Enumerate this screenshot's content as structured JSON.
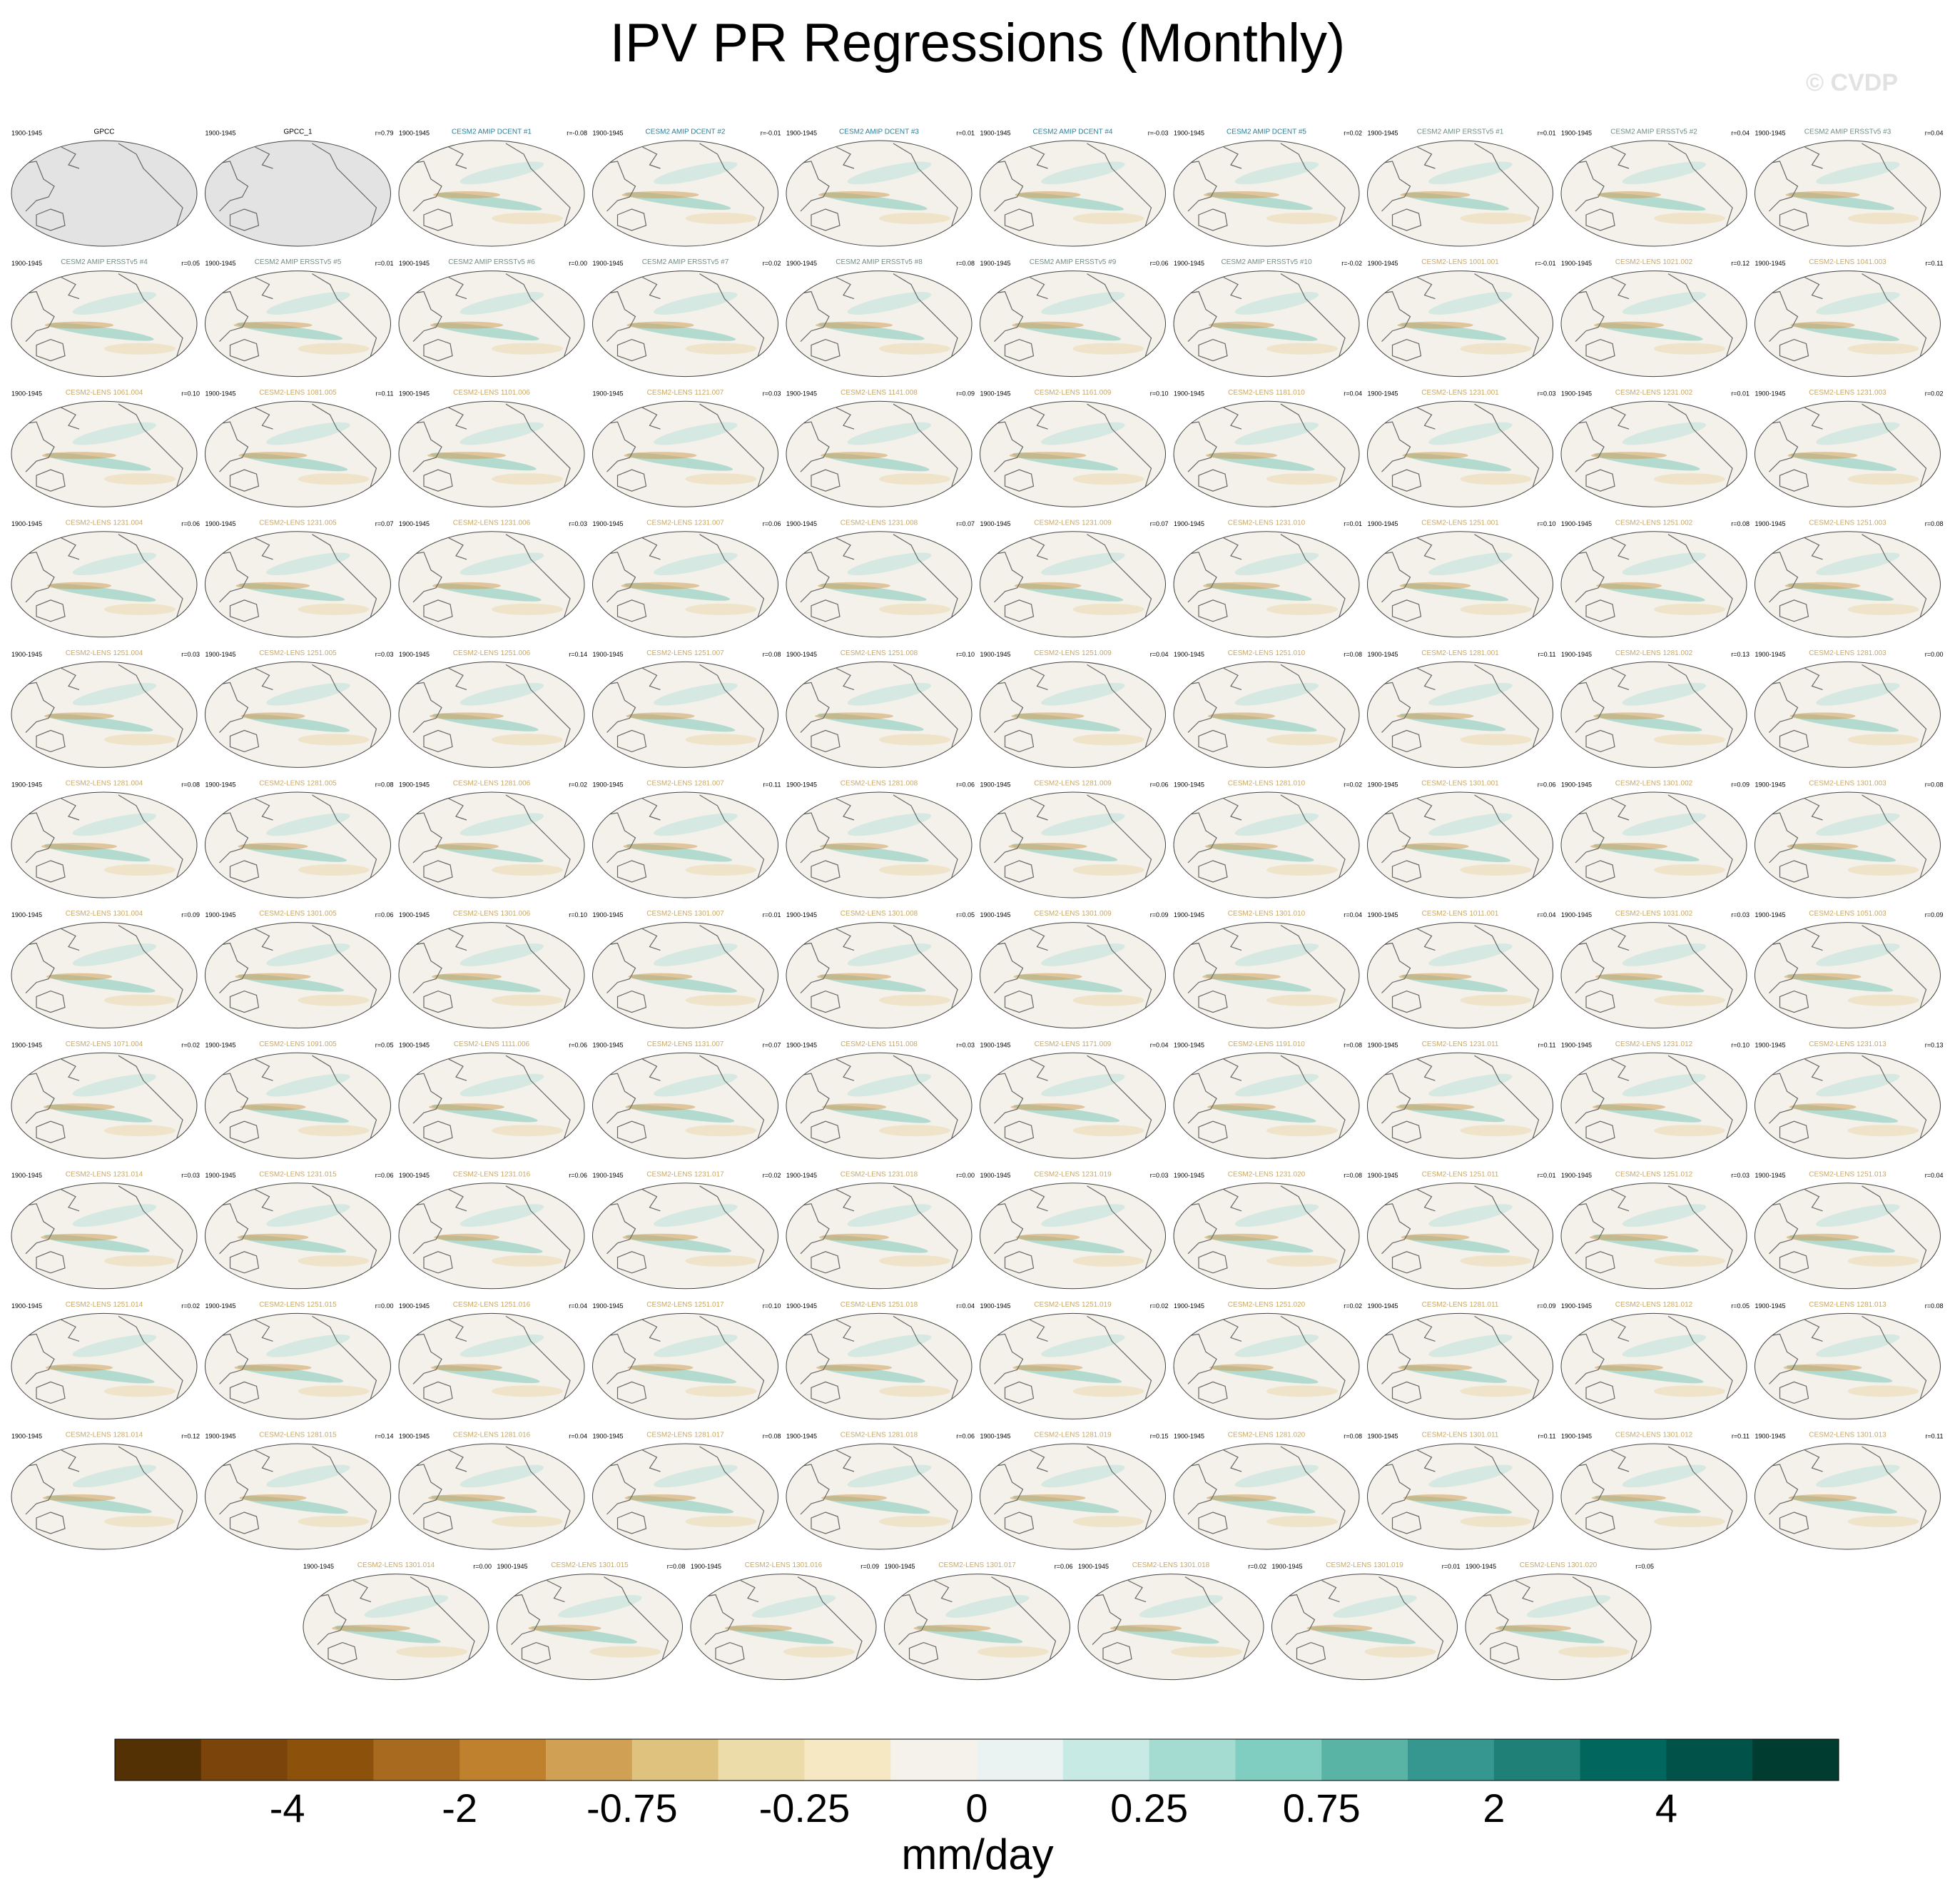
{
  "title": "IPV PR Regressions (Monthly)",
  "watermark": "© CVDP",
  "map_fill": "#f4f1ea",
  "panels": [
    {
      "title": "GPCC",
      "period": "1900-1945",
      "title_color": "#000000",
      "map_fill": "#e3e3e3"
    },
    {
      "title": "GPCC_1",
      "period": "1900-1945",
      "r": "r=0.79",
      "title_color": "#000000",
      "map_fill": "#e3e3e3"
    },
    {
      "title": "CESM2 AMIP DCENT #1",
      "period": "1900-1945",
      "r": "r=-0.08",
      "title_color": "#2a7f9a"
    },
    {
      "title": "CESM2 AMIP DCENT #2",
      "period": "1900-1945",
      "r": "r=-0.01",
      "title_color": "#2a7f9a"
    },
    {
      "title": "CESM2 AMIP DCENT #3",
      "period": "1900-1945",
      "r": "r=0.01",
      "title_color": "#2a7f9a"
    },
    {
      "title": "CESM2 AMIP DCENT #4",
      "period": "1900-1945",
      "r": "r=-0.03",
      "title_color": "#2a7f9a"
    },
    {
      "title": "CESM2 AMIP DCENT #5",
      "period": "1900-1945",
      "r": "r=0.02",
      "title_color": "#2a7f9a"
    },
    {
      "title": "CESM2 AMIP ERSSTv5 #1",
      "period": "1900-1945",
      "r": "r=0.01",
      "title_color": "#6f8f80"
    },
    {
      "title": "CESM2 AMIP ERSSTv5 #2",
      "period": "1900-1945",
      "r": "r=0.04",
      "title_color": "#6f8f80"
    },
    {
      "title": "CESM2 AMIP ERSSTv5 #3",
      "period": "1900-1945",
      "r": "r=0.04",
      "title_color": "#6f8f80"
    },
    {
      "title": "CESM2 AMIP ERSSTv5 #4",
      "period": "1900-1945",
      "r": "r=0.05",
      "title_color": "#6f8f80"
    },
    {
      "title": "CESM2 AMIP ERSSTv5 #5",
      "period": "1900-1945",
      "r": "r=0.01",
      "title_color": "#6f8f80"
    },
    {
      "title": "CESM2 AMIP ERSSTv5 #6",
      "period": "1900-1945",
      "r": "r=0.00",
      "title_color": "#6f8f80"
    },
    {
      "title": "CESM2 AMIP ERSSTv5 #7",
      "period": "1900-1945",
      "r": "r=0.02",
      "title_color": "#6f8f80"
    },
    {
      "title": "CESM2 AMIP ERSSTv5 #8",
      "period": "1900-1945",
      "r": "r=0.08",
      "title_color": "#6f8f80"
    },
    {
      "title": "CESM2 AMIP ERSSTv5 #9",
      "period": "1900-1945",
      "r": "r=0.06",
      "title_color": "#6f8f80"
    },
    {
      "title": "CESM2 AMIP ERSSTv5 #10",
      "period": "1900-1945",
      "r": "r=-0.02",
      "title_color": "#6f8f80"
    },
    {
      "title": "CESM2-LENS 1001.001",
      "period": "1900-1945",
      "r": "r=-0.01",
      "title_color": "#c9a864"
    },
    {
      "title": "CESM2-LENS 1021.002",
      "period": "1900-1945",
      "r": "r=0.12",
      "title_color": "#c9a864"
    },
    {
      "title": "CESM2-LENS 1041.003",
      "period": "1900-1945",
      "r": "r=0.11",
      "title_color": "#c9a864"
    },
    {
      "title": "CESM2-LENS 1061.004",
      "period": "1900-1945",
      "r": "r=0.10",
      "title_color": "#c9a864"
    },
    {
      "title": "CESM2-LENS 1081.005",
      "period": "1900-1945",
      "r": "r=0.11",
      "title_color": "#c9a864"
    },
    {
      "title": "CESM2-LENS 1101.006",
      "period": "1900-1945",
      "title_color": "#c9a864"
    },
    {
      "title": "CESM2-LENS 1121.007",
      "period": "1900-1945",
      "r": "r=0.03",
      "title_color": "#c9a864"
    },
    {
      "title": "CESM2-LENS 1141.008",
      "period": "1900-1945",
      "r": "r=0.09",
      "title_color": "#c9a864"
    },
    {
      "title": "CESM2-LENS 1161.009",
      "period": "1900-1945",
      "r": "r=0.10",
      "title_color": "#c9a864"
    },
    {
      "title": "CESM2-LENS 1181.010",
      "period": "1900-1945",
      "r": "r=0.04",
      "title_color": "#c9a864"
    },
    {
      "title": "CESM2-LENS 1231.001",
      "period": "1900-1945",
      "r": "r=0.03",
      "title_color": "#c9a864"
    },
    {
      "title": "CESM2-LENS 1231.002",
      "period": "1900-1945",
      "r": "r=0.01",
      "title_color": "#c9a864"
    },
    {
      "title": "CESM2-LENS 1231.003",
      "period": "1900-1945",
      "r": "r=0.02",
      "title_color": "#c9a864"
    },
    {
      "title": "CESM2-LENS 1231.004",
      "period": "1900-1945",
      "r": "r=0.06",
      "title_color": "#c9a864"
    },
    {
      "title": "CESM2-LENS 1231.005",
      "period": "1900-1945",
      "r": "r=0.07",
      "title_color": "#c9a864"
    },
    {
      "title": "CESM2-LENS 1231.006",
      "period": "1900-1945",
      "r": "r=0.03",
      "title_color": "#c9a864"
    },
    {
      "title": "CESM2-LENS 1231.007",
      "period": "1900-1945",
      "r": "r=0.06",
      "title_color": "#c9a864"
    },
    {
      "title": "CESM2-LENS 1231.008",
      "period": "1900-1945",
      "r": "r=0.07",
      "title_color": "#c9a864"
    },
    {
      "title": "CESM2-LENS 1231.009",
      "period": "1900-1945",
      "r": "r=0.07",
      "title_color": "#c9a864"
    },
    {
      "title": "CESM2-LENS 1231.010",
      "period": "1900-1945",
      "r": "r=0.01",
      "title_color": "#c9a864"
    },
    {
      "title": "CESM2-LENS 1251.001",
      "period": "1900-1945",
      "r": "r=0.10",
      "title_color": "#c9a864"
    },
    {
      "title": "CESM2-LENS 1251.002",
      "period": "1900-1945",
      "r": "r=0.08",
      "title_color": "#c9a864"
    },
    {
      "title": "CESM2-LENS 1251.003",
      "period": "1900-1945",
      "r": "r=0.08",
      "title_color": "#c9a864"
    },
    {
      "title": "CESM2-LENS 1251.004",
      "period": "1900-1945",
      "r": "r=0.03",
      "title_color": "#c9a864"
    },
    {
      "title": "CESM2-LENS 1251.005",
      "period": "1900-1945",
      "r": "r=0.03",
      "title_color": "#c9a864"
    },
    {
      "title": "CESM2-LENS 1251.006",
      "period": "1900-1945",
      "r": "r=0.14",
      "title_color": "#c9a864"
    },
    {
      "title": "CESM2-LENS 1251.007",
      "period": "1900-1945",
      "r": "r=0.08",
      "title_color": "#c9a864"
    },
    {
      "title": "CESM2-LENS 1251.008",
      "period": "1900-1945",
      "r": "r=0.10",
      "title_color": "#c9a864"
    },
    {
      "title": "CESM2-LENS 1251.009",
      "period": "1900-1945",
      "r": "r=0.04",
      "title_color": "#c9a864"
    },
    {
      "title": "CESM2-LENS 1251.010",
      "period": "1900-1945",
      "r": "r=0.08",
      "title_color": "#c9a864"
    },
    {
      "title": "CESM2-LENS 1281.001",
      "period": "1900-1945",
      "r": "r=0.11",
      "title_color": "#c9a864"
    },
    {
      "title": "CESM2-LENS 1281.002",
      "period": "1900-1945",
      "r": "r=0.13",
      "title_color": "#c9a864"
    },
    {
      "title": "CESM2-LENS 1281.003",
      "period": "1900-1945",
      "r": "r=0.00",
      "title_color": "#c9a864"
    },
    {
      "title": "CESM2-LENS 1281.004",
      "period": "1900-1945",
      "r": "r=0.08",
      "title_color": "#c9a864"
    },
    {
      "title": "CESM2-LENS 1281.005",
      "period": "1900-1945",
      "r": "r=0.08",
      "title_color": "#c9a864"
    },
    {
      "title": "CESM2-LENS 1281.006",
      "period": "1900-1945",
      "r": "r=0.02",
      "title_color": "#c9a864"
    },
    {
      "title": "CESM2-LENS 1281.007",
      "period": "1900-1945",
      "r": "r=0.11",
      "title_color": "#c9a864"
    },
    {
      "title": "CESM2-LENS 1281.008",
      "period": "1900-1945",
      "r": "r=0.06",
      "title_color": "#c9a864"
    },
    {
      "title": "CESM2-LENS 1281.009",
      "period": "1900-1945",
      "r": "r=0.06",
      "title_color": "#c9a864"
    },
    {
      "title": "CESM2-LENS 1281.010",
      "period": "1900-1945",
      "r": "r=0.02",
      "title_color": "#c9a864"
    },
    {
      "title": "CESM2-LENS 1301.001",
      "period": "1900-1945",
      "r": "r=0.06",
      "title_color": "#c9a864"
    },
    {
      "title": "CESM2-LENS 1301.002",
      "period": "1900-1945",
      "r": "r=0.09",
      "title_color": "#c9a864"
    },
    {
      "title": "CESM2-LENS 1301.003",
      "period": "1900-1945",
      "r": "r=0.08",
      "title_color": "#c9a864"
    },
    {
      "title": "CESM2-LENS 1301.004",
      "period": "1900-1945",
      "r": "r=0.09",
      "title_color": "#c9a864"
    },
    {
      "title": "CESM2-LENS 1301.005",
      "period": "1900-1945",
      "r": "r=0.06",
      "title_color": "#c9a864"
    },
    {
      "title": "CESM2-LENS 1301.006",
      "period": "1900-1945",
      "r": "r=0.10",
      "title_color": "#c9a864"
    },
    {
      "title": "CESM2-LENS 1301.007",
      "period": "1900-1945",
      "r": "r=0.01",
      "title_color": "#c9a864"
    },
    {
      "title": "CESM2-LENS 1301.008",
      "period": "1900-1945",
      "r": "r=0.05",
      "title_color": "#c9a864"
    },
    {
      "title": "CESM2-LENS 1301.009",
      "period": "1900-1945",
      "r": "r=0.09",
      "title_color": "#c9a864"
    },
    {
      "title": "CESM2-LENS 1301.010",
      "period": "1900-1945",
      "r": "r=0.04",
      "title_color": "#c9a864"
    },
    {
      "title": "CESM2-LENS 1011.001",
      "period": "1900-1945",
      "r": "r=0.04",
      "title_color": "#c9a864"
    },
    {
      "title": "CESM2-LENS 1031.002",
      "period": "1900-1945",
      "r": "r=0.03",
      "title_color": "#c9a864"
    },
    {
      "title": "CESM2-LENS 1051.003",
      "period": "1900-1945",
      "r": "r=0.09",
      "title_color": "#c9a864"
    },
    {
      "title": "CESM2-LENS 1071.004",
      "period": "1900-1945",
      "r": "r=0.02",
      "title_color": "#c9a864"
    },
    {
      "title": "CESM2-LENS 1091.005",
      "period": "1900-1945",
      "r": "r=0.05",
      "title_color": "#c9a864"
    },
    {
      "title": "CESM2-LENS 1111.006",
      "period": "1900-1945",
      "r": "r=0.06",
      "title_color": "#c9a864"
    },
    {
      "title": "CESM2-LENS 1131.007",
      "period": "1900-1945",
      "r": "r=0.07",
      "title_color": "#c9a864"
    },
    {
      "title": "CESM2-LENS 1151.008",
      "period": "1900-1945",
      "r": "r=0.03",
      "title_color": "#c9a864"
    },
    {
      "title": "CESM2-LENS 1171.009",
      "period": "1900-1945",
      "r": "r=0.04",
      "title_color": "#c9a864"
    },
    {
      "title": "CESM2-LENS 1191.010",
      "period": "1900-1945",
      "r": "r=0.08",
      "title_color": "#c9a864"
    },
    {
      "title": "CESM2-LENS 1231.011",
      "period": "1900-1945",
      "r": "r=0.11",
      "title_color": "#c9a864"
    },
    {
      "title": "CESM2-LENS 1231.012",
      "period": "1900-1945",
      "r": "r=0.10",
      "title_color": "#c9a864"
    },
    {
      "title": "CESM2-LENS 1231.013",
      "period": "1900-1945",
      "r": "r=0.13",
      "title_color": "#c9a864"
    },
    {
      "title": "CESM2-LENS 1231.014",
      "period": "1900-1945",
      "r": "r=0.03",
      "title_color": "#c9a864"
    },
    {
      "title": "CESM2-LENS 1231.015",
      "period": "1900-1945",
      "r": "r=0.06",
      "title_color": "#c9a864"
    },
    {
      "title": "CESM2-LENS 1231.016",
      "period": "1900-1945",
      "r": "r=0.06",
      "title_color": "#c9a864"
    },
    {
      "title": "CESM2-LENS 1231.017",
      "period": "1900-1945",
      "r": "r=0.02",
      "title_color": "#c9a864"
    },
    {
      "title": "CESM2-LENS 1231.018",
      "period": "1900-1945",
      "r": "r=0.00",
      "title_color": "#c9a864"
    },
    {
      "title": "CESM2-LENS 1231.019",
      "period": "1900-1945",
      "r": "r=0.03",
      "title_color": "#c9a864"
    },
    {
      "title": "CESM2-LENS 1231.020",
      "period": "1900-1945",
      "r": "r=0.08",
      "title_color": "#c9a864"
    },
    {
      "title": "CESM2-LENS 1251.011",
      "period": "1900-1945",
      "r": "r=0.01",
      "title_color": "#c9a864"
    },
    {
      "title": "CESM2-LENS 1251.012",
      "period": "1900-1945",
      "r": "r=0.03",
      "title_color": "#c9a864"
    },
    {
      "title": "CESM2-LENS 1251.013",
      "period": "1900-1945",
      "r": "r=0.04",
      "title_color": "#c9a864"
    },
    {
      "title": "CESM2-LENS 1251.014",
      "period": "1900-1945",
      "r": "r=0.02",
      "title_color": "#c9a864"
    },
    {
      "title": "CESM2-LENS 1251.015",
      "period": "1900-1945",
      "r": "r=0.00",
      "title_color": "#c9a864"
    },
    {
      "title": "CESM2-LENS 1251.016",
      "period": "1900-1945",
      "r": "r=0.04",
      "title_color": "#c9a864"
    },
    {
      "title": "CESM2-LENS 1251.017",
      "period": "1900-1945",
      "r": "r=0.10",
      "title_color": "#c9a864"
    },
    {
      "title": "CESM2-LENS 1251.018",
      "period": "1900-1945",
      "r": "r=0.04",
      "title_color": "#c9a864"
    },
    {
      "title": "CESM2-LENS 1251.019",
      "period": "1900-1945",
      "r": "r=0.02",
      "title_color": "#c9a864"
    },
    {
      "title": "CESM2-LENS 1251.020",
      "period": "1900-1945",
      "r": "r=0.02",
      "title_color": "#c9a864"
    },
    {
      "title": "CESM2-LENS 1281.011",
      "period": "1900-1945",
      "r": "r=0.09",
      "title_color": "#c9a864"
    },
    {
      "title": "CESM2-LENS 1281.012",
      "period": "1900-1945",
      "r": "r=0.05",
      "title_color": "#c9a864"
    },
    {
      "title": "CESM2-LENS 1281.013",
      "period": "1900-1945",
      "r": "r=0.08",
      "title_color": "#c9a864"
    },
    {
      "title": "CESM2-LENS 1281.014",
      "period": "1900-1945",
      "r": "r=0.12",
      "title_color": "#c9a864"
    },
    {
      "title": "CESM2-LENS 1281.015",
      "period": "1900-1945",
      "r": "r=0.14",
      "title_color": "#c9a864"
    },
    {
      "title": "CESM2-LENS 1281.016",
      "period": "1900-1945",
      "r": "r=0.04",
      "title_color": "#c9a864"
    },
    {
      "title": "CESM2-LENS 1281.017",
      "period": "1900-1945",
      "r": "r=0.08",
      "title_color": "#c9a864"
    },
    {
      "title": "CESM2-LENS 1281.018",
      "period": "1900-1945",
      "r": "r=0.06",
      "title_color": "#c9a864"
    },
    {
      "title": "CESM2-LENS 1281.019",
      "period": "1900-1945",
      "r": "r=0.15",
      "title_color": "#c9a864"
    },
    {
      "title": "CESM2-LENS 1281.020",
      "period": "1900-1945",
      "r": "r=0.08",
      "title_color": "#c9a864"
    },
    {
      "title": "CESM2-LENS 1301.011",
      "period": "1900-1945",
      "r": "r=0.11",
      "title_color": "#c9a864"
    },
    {
      "title": "CESM2-LENS 1301.012",
      "period": "1900-1945",
      "r": "r=0.11",
      "title_color": "#c9a864"
    },
    {
      "title": "CESM2-LENS 1301.013",
      "period": "1900-1945",
      "r": "r=0.11",
      "title_color": "#c9a864"
    },
    {
      "title": "CESM2-LENS 1301.014",
      "period": "1900-1945",
      "r": "r=0.00",
      "title_color": "#c9a864"
    },
    {
      "title": "CESM2-LENS 1301.015",
      "period": "1900-1945",
      "r": "r=0.08",
      "title_color": "#c9a864"
    },
    {
      "title": "CESM2-LENS 1301.016",
      "period": "1900-1945",
      "r": "r=0.09",
      "title_color": "#c9a864"
    },
    {
      "title": "CESM2-LENS 1301.017",
      "period": "1900-1945",
      "r": "r=0.06",
      "title_color": "#c9a864"
    },
    {
      "title": "CESM2-LENS 1301.018",
      "period": "1900-1945",
      "r": "r=0.02",
      "title_color": "#c9a864"
    },
    {
      "title": "CESM2-LENS 1301.019",
      "period": "1900-1945",
      "r": "r=0.01",
      "title_color": "#c9a864"
    },
    {
      "title": "CESM2-LENS 1301.020",
      "period": "1900-1945",
      "r": "r=0.05",
      "title_color": "#c9a864"
    }
  ],
  "colorbar": {
    "label": "mm/day",
    "ticks": [
      -4,
      -2,
      -0.75,
      -0.25,
      0,
      0.25,
      0.75,
      2,
      4
    ],
    "colors": [
      "#543005",
      "#7a440b",
      "#8c510a",
      "#a86a1e",
      "#bf812d",
      "#d0a055",
      "#dfc27d",
      "#ecdcaa",
      "#f6e8c3",
      "#f5f2ec",
      "#eaf3f2",
      "#c7eae5",
      "#a5dcd1",
      "#80cdc1",
      "#5ab4a5",
      "#35978f",
      "#1f8078",
      "#01665e",
      "#015248",
      "#003c30"
    ]
  }
}
